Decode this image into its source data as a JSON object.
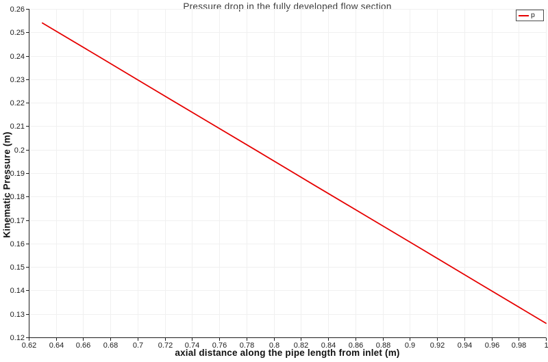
{
  "chart_data": {
    "type": "line",
    "title": "Pressure drop in the fully developed flow section",
    "xlabel": "axial distance along the pipe length from inlet (m)",
    "ylabel": "Kinematic Pressure (m)",
    "xlim": [
      0.62,
      1.0
    ],
    "ylim": [
      0.12,
      0.26
    ],
    "x_tick_labels": [
      "0.62",
      "0.64",
      "0.66",
      "0.68",
      "0.7",
      "0.72",
      "0.74",
      "0.76",
      "0.78",
      "0.8",
      "0.82",
      "0.84",
      "0.86",
      "0.88",
      "0.9",
      "0.92",
      "0.94",
      "0.96",
      "0.98",
      "1"
    ],
    "y_tick_labels": [
      "0.12",
      "0.13",
      "0.14",
      "0.15",
      "0.16",
      "0.17",
      "0.18",
      "0.19",
      "0.2",
      "0.21",
      "0.22",
      "0.23",
      "0.24",
      "0.25",
      "0.26"
    ],
    "grid": true,
    "legend": {
      "position": "top-right",
      "entries": [
        {
          "label": "p",
          "color": "#e60000"
        }
      ]
    },
    "series": [
      {
        "name": "p",
        "color": "#e60000",
        "x": [
          0.63,
          0.67,
          0.71,
          0.75,
          0.79,
          0.83,
          0.87,
          0.91,
          0.95,
          1.0
        ],
        "y": [
          0.254,
          0.2402,
          0.2263,
          0.2125,
          0.1987,
          0.1848,
          0.171,
          0.1572,
          0.1433,
          0.126
        ]
      }
    ],
    "colors": {
      "grid": "#f0f0f0",
      "axis": "#1a1a1a",
      "background": "#ffffff"
    }
  }
}
